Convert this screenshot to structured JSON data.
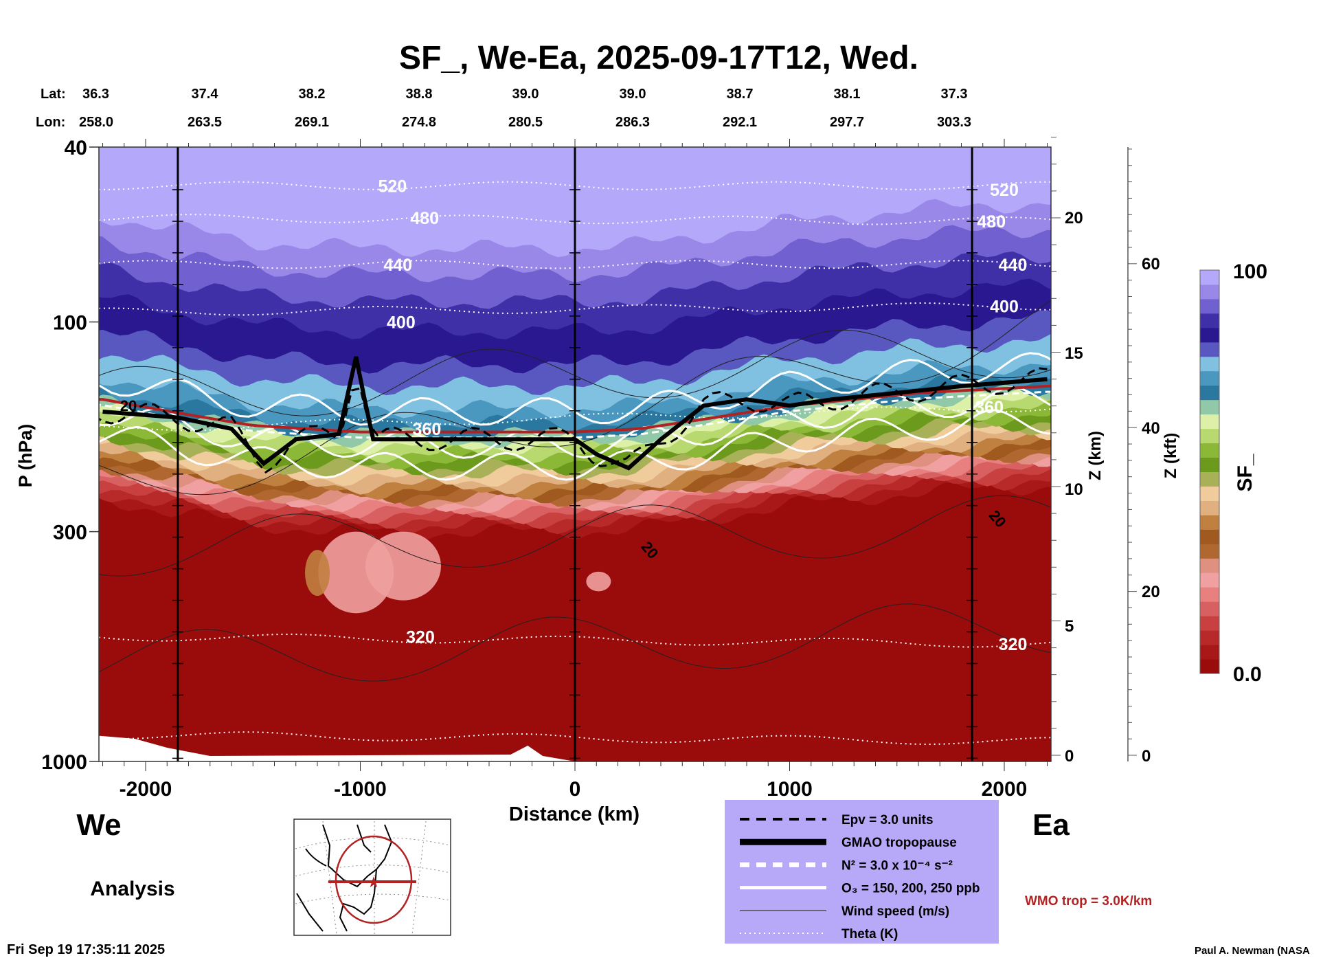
{
  "chart_data": {
    "type": "heatmap",
    "title": "SF_, We-Ea, 2025-09-17T12, Wed.",
    "xlabel": "Distance (km)",
    "ylabel": "P (hPa)",
    "y2label": "Z (km)",
    "y3label": "Z (kft)",
    "colorbar_label": "SF_",
    "xlim": [
      -2220,
      2220
    ],
    "ylim": [
      1000,
      40
    ],
    "yscale": "log",
    "x_ticks": [
      "-2000",
      "-1000",
      "0",
      "1000",
      "2000"
    ],
    "x_tick_values": [
      -2000,
      -1000,
      0,
      1000,
      2000
    ],
    "y_ticks": [
      "40",
      "100",
      "300",
      "1000"
    ],
    "y_tick_values": [
      40,
      100,
      300,
      1000
    ],
    "zkm_ticks": [
      "0",
      "5",
      "10",
      "15",
      "20"
    ],
    "zkft_ticks": [
      "0",
      "20",
      "40",
      "60"
    ],
    "lat_label": "Lat:",
    "lon_label": "Lon:",
    "lat": [
      "36.3",
      "37.4",
      "38.2",
      "38.8",
      "39.0",
      "39.0",
      "38.7",
      "38.1",
      "37.3"
    ],
    "lon": [
      "258.0",
      "263.5",
      "269.1",
      "274.8",
      "280.5",
      "286.3",
      "292.1",
      "297.7",
      "303.3"
    ],
    "colorbar": {
      "min_label": "0.0",
      "max_label": "100",
      "colors": [
        "#9a0c0c",
        "#a81818",
        "#b82a2a",
        "#c84040",
        "#d86060",
        "#e88080",
        "#f0a0a0",
        "#e09080",
        "#b06830",
        "#a05a20",
        "#c08040",
        "#e0b080",
        "#f0cc9c",
        "#a8b058",
        "#6c9a1c",
        "#8cb838",
        "#b8d870",
        "#dcf0a8",
        "#90c8a8",
        "#2a78a0",
        "#4a98c0",
        "#80c0e0",
        "#5858c0",
        "#2a1890",
        "#4030a8",
        "#7060d0",
        "#9a88e8",
        "#b4a8fa"
      ]
    },
    "series": [
      {
        "name": "GMAO tropopause",
        "x": [
          -2200,
          -1850,
          -1600,
          -1450,
          -1300,
          -1100,
          -1020,
          -980,
          -940,
          -700,
          0,
          100,
          250,
          400,
          600,
          800,
          1000,
          1200,
          1500,
          1800,
          2200
        ],
        "p": [
          160,
          165,
          175,
          210,
          185,
          180,
          120,
          150,
          185,
          185,
          185,
          200,
          215,
          185,
          155,
          150,
          155,
          150,
          145,
          140,
          135
        ]
      },
      {
        "name": "WMO trop",
        "x": [
          -2200,
          -1500,
          -1000,
          0,
          300,
          1000,
          1600,
          2200
        ],
        "p": [
          150,
          172,
          178,
          178,
          175,
          155,
          145,
          140
        ]
      }
    ],
    "theta_labels": [
      {
        "text": "520",
        "x": -850,
        "p": 49
      },
      {
        "text": "480",
        "x": -700,
        "p": 58
      },
      {
        "text": "440",
        "x": -825,
        "p": 74
      },
      {
        "text": "400",
        "x": -810,
        "p": 100
      },
      {
        "text": "360",
        "x": -690,
        "p": 175
      },
      {
        "text": "320",
        "x": -720,
        "p": 520
      },
      {
        "text": "520",
        "x": 2000,
        "p": 50
      },
      {
        "text": "480",
        "x": 1940,
        "p": 59
      },
      {
        "text": "440",
        "x": 2040,
        "p": 74
      },
      {
        "text": "400",
        "x": 2000,
        "p": 92
      },
      {
        "text": "360",
        "x": 1930,
        "p": 156
      },
      {
        "text": "320",
        "x": 2040,
        "p": 540
      }
    ],
    "wind_labels": [
      {
        "text": "20",
        "x": -2080,
        "p": 155
      },
      {
        "text": "20",
        "x": 350,
        "p": 330
      },
      {
        "text": "20",
        "x": 1970,
        "p": 280
      }
    ],
    "legend": [
      {
        "label": "Epv = 3.0 units",
        "style": "dashed-black"
      },
      {
        "label": "GMAO tropopause",
        "style": "thick-black"
      },
      {
        "label": "N² = 3.0 x 10⁻⁴ s⁻²",
        "style": "dashed-white"
      },
      {
        "label": "O₃ = 150, 200, 250 ppb",
        "style": "solid-white"
      },
      {
        "label": "Wind speed (m/s)",
        "style": "thin-black"
      },
      {
        "label": "Theta (K)",
        "style": "dotted-white"
      }
    ],
    "legend_bg": "#b8a8f8",
    "west_label": "We",
    "east_label": "Ea",
    "analysis_label": "Analysis",
    "wmo_note": "WMO trop = 3.0K/km",
    "wmo_color": "#b22222",
    "timestamp": "Fri Sep 19 17:35:11 2025",
    "credit": "Paul A. Newman (NASA"
  }
}
